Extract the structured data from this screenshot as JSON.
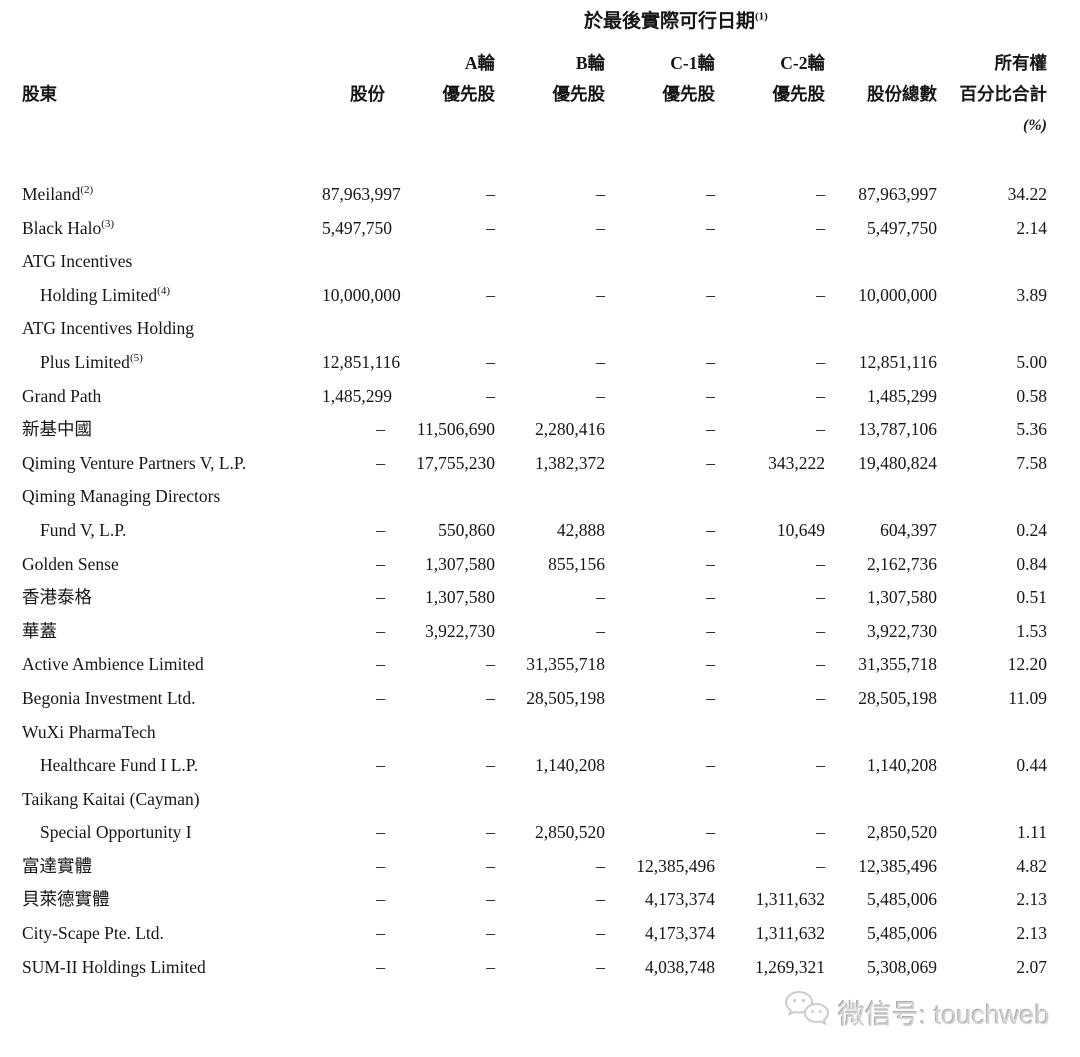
{
  "table": {
    "title": "於最後實際可行日期",
    "title_sup": "(1)",
    "header": {
      "shareholder": "股東",
      "shares": "股份",
      "round_a": "A輪",
      "round_b": "B輪",
      "round_c1": "C-1輪",
      "round_c2": "C-2輪",
      "preferred": "優先股",
      "total_shares": "股份總數",
      "ownership_line1": "所有權",
      "ownership_line2": "百分比合計",
      "percent_unit": "(%)"
    },
    "rows": [
      {
        "name": "Meiland",
        "sup": "(2)",
        "indent": false,
        "cells": [
          "87,963,997",
          "–",
          "–",
          "–",
          "–",
          "87,963,997",
          "34.22"
        ]
      },
      {
        "name": "Black Halo",
        "sup": "(3)",
        "indent": false,
        "cells": [
          "5,497,750",
          "–",
          "–",
          "–",
          "–",
          "5,497,750",
          "2.14"
        ]
      },
      {
        "name": "ATG Incentives",
        "indent": false,
        "cells": [
          "",
          "",
          "",
          "",
          "",
          "",
          ""
        ]
      },
      {
        "name": "Holding Limited",
        "sup": "(4)",
        "indent": true,
        "cells": [
          "10,000,000",
          "–",
          "–",
          "–",
          "–",
          "10,000,000",
          "3.89"
        ]
      },
      {
        "name": "ATG Incentives Holding",
        "indent": false,
        "cells": [
          "",
          "",
          "",
          "",
          "",
          "",
          ""
        ]
      },
      {
        "name": "Plus Limited",
        "sup": "(5)",
        "indent": true,
        "cells": [
          "12,851,116",
          "–",
          "–",
          "–",
          "–",
          "12,851,116",
          "5.00"
        ]
      },
      {
        "name": "Grand Path",
        "indent": false,
        "cells": [
          "1,485,299",
          "–",
          "–",
          "–",
          "–",
          "1,485,299",
          "0.58"
        ]
      },
      {
        "name": "新基中國",
        "indent": false,
        "cells": [
          "–",
          "11,506,690",
          "2,280,416",
          "–",
          "–",
          "13,787,106",
          "5.36"
        ]
      },
      {
        "name": "Qiming Venture Partners V, L.P.",
        "indent": false,
        "cells": [
          "–",
          "17,755,230",
          "1,382,372",
          "–",
          "343,222",
          "19,480,824",
          "7.58"
        ]
      },
      {
        "name": "Qiming Managing Directors",
        "indent": false,
        "cells": [
          "",
          "",
          "",
          "",
          "",
          "",
          ""
        ]
      },
      {
        "name": "Fund V, L.P.",
        "indent": true,
        "cells": [
          "–",
          "550,860",
          "42,888",
          "–",
          "10,649",
          "604,397",
          "0.24"
        ]
      },
      {
        "name": "Golden Sense",
        "indent": false,
        "cells": [
          "–",
          "1,307,580",
          "855,156",
          "–",
          "–",
          "2,162,736",
          "0.84"
        ]
      },
      {
        "name": "香港泰格",
        "indent": false,
        "cells": [
          "–",
          "1,307,580",
          "–",
          "–",
          "–",
          "1,307,580",
          "0.51"
        ]
      },
      {
        "name": "華蓋",
        "indent": false,
        "cells": [
          "–",
          "3,922,730",
          "–",
          "–",
          "–",
          "3,922,730",
          "1.53"
        ]
      },
      {
        "name": "Active Ambience Limited",
        "indent": false,
        "cells": [
          "–",
          "–",
          "31,355,718",
          "–",
          "–",
          "31,355,718",
          "12.20"
        ]
      },
      {
        "name": "Begonia Investment Ltd.",
        "indent": false,
        "cells": [
          "–",
          "–",
          "28,505,198",
          "–",
          "–",
          "28,505,198",
          "11.09"
        ]
      },
      {
        "name": "WuXi PharmaTech",
        "indent": false,
        "cells": [
          "",
          "",
          "",
          "",
          "",
          "",
          ""
        ]
      },
      {
        "name": "Healthcare Fund I L.P.",
        "indent": true,
        "cells": [
          "–",
          "–",
          "1,140,208",
          "–",
          "–",
          "1,140,208",
          "0.44"
        ]
      },
      {
        "name": "Taikang Kaitai (Cayman)",
        "indent": false,
        "cells": [
          "",
          "",
          "",
          "",
          "",
          "",
          ""
        ]
      },
      {
        "name": "Special Opportunity I",
        "indent": true,
        "cells": [
          "–",
          "–",
          "2,850,520",
          "–",
          "–",
          "2,850,520",
          "1.11"
        ]
      },
      {
        "name": "富達實體",
        "indent": false,
        "cells": [
          "–",
          "–",
          "–",
          "12,385,496",
          "–",
          "12,385,496",
          "4.82"
        ]
      },
      {
        "name": "貝萊德實體",
        "indent": false,
        "cells": [
          "–",
          "–",
          "–",
          "4,173,374",
          "1,311,632",
          "5,485,006",
          "2.13"
        ]
      },
      {
        "name": "City-Scape Pte. Ltd.",
        "indent": false,
        "cells": [
          "–",
          "–",
          "–",
          "4,173,374",
          "1,311,632",
          "5,485,006",
          "2.13"
        ]
      },
      {
        "name": "SUM-II Holdings Limited",
        "indent": false,
        "cells": [
          "–",
          "–",
          "–",
          "4,038,748",
          "1,269,321",
          "5,308,069",
          "2.07"
        ]
      }
    ]
  },
  "watermark": {
    "text": "微信号: touchweb",
    "icon": "wechat-icon",
    "color": "#d2d2d2"
  }
}
